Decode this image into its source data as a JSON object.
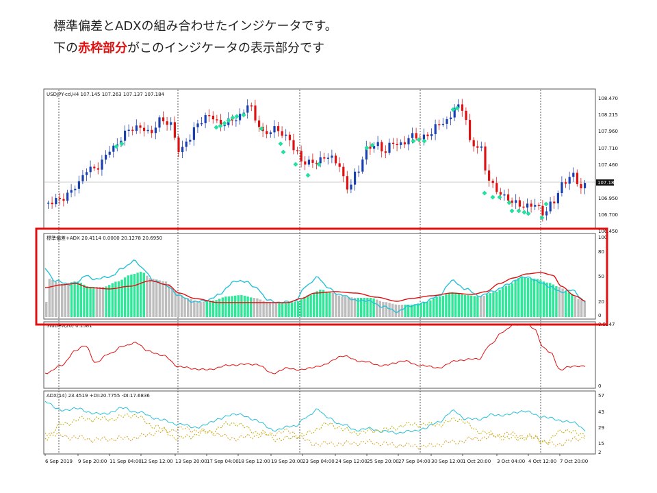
{
  "heading": {
    "line1": "標準偏差とADXの組み合わせたインジケータです。",
    "line2_prefix": "下の",
    "line2_highlight": "赤枠部分",
    "line2_suffix": "がこのインジケータの表示部分です"
  },
  "colors": {
    "bull": "#1a3fb0",
    "bear": "#e01010",
    "marker": "#23e0a0",
    "adx_line": "#28c0d8",
    "red_line": "#e01010",
    "hist_gray": "#bdbdbd",
    "hist_green": "#2ee89a",
    "highlight_frame": "#e01010",
    "plusdi": "#c0b000",
    "minusdi": "#d8a020"
  },
  "main_pane": {
    "header": "USDJPY-cd,H4  107.145 107.263 107.137 107.184",
    "price_labels": [
      "108.470",
      "108.215",
      "107.960",
      "107.710",
      "107.460",
      "107.184",
      "106.950",
      "106.700",
      "106.450"
    ],
    "current_price": "107.184"
  },
  "indicator_pane": {
    "header": "標準偏差+ADX 20.4114 0.0000 20.1278 20.6950",
    "scale": [
      "100",
      "80",
      "50",
      "20",
      "0"
    ]
  },
  "stddev_pane": {
    "header": "StdDev(20) 0.1581",
    "scale": [
      "0.9547",
      "0"
    ]
  },
  "adx_pane": {
    "header": "ADX(14) 23.4519 +DI:20.7755 -DI:17.6836",
    "scale": [
      "57",
      "43",
      "29",
      "15",
      "2"
    ]
  },
  "time_axis": [
    "6 Sep 2019",
    "9 Sep 20:00",
    "11 Sep 04:00",
    "12 Sep 12:00",
    "13 Sep 20:00",
    "17 Sep 04:00",
    "18 Sep 12:00",
    "19 Sep 20:00",
    "23 Sep 04:00",
    "24 Sep 12:00",
    "25 Sep 20:00",
    "27 Sep 04:00",
    "30 Sep 12:00",
    "1 Oct 20:00",
    "3 Oct 04:00",
    "4 Oct 12:00",
    "7 Oct 20:00"
  ]
}
